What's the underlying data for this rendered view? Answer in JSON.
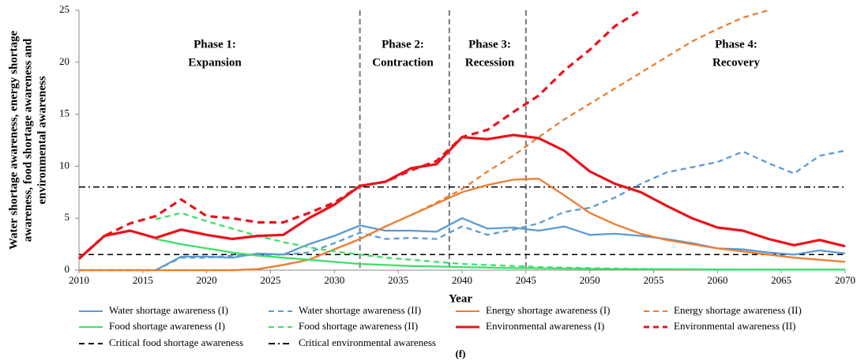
{
  "chart_data": {
    "type": "line",
    "y_label_lines": [
      "Water shortage awareness, energy shortage",
      "awareness, food shortage awareness and",
      "environmental awareness"
    ],
    "x_label": "Year",
    "caption": "(f)",
    "x": [
      2010,
      2012,
      2014,
      2016,
      2018,
      2020,
      2022,
      2024,
      2026,
      2028,
      2030,
      2032,
      2034,
      2036,
      2038,
      2040,
      2042,
      2044,
      2046,
      2048,
      2050,
      2052,
      2054,
      2056,
      2058,
      2060,
      2062,
      2064,
      2066,
      2068,
      2070
    ],
    "xlim": [
      2010,
      2070
    ],
    "xticks": [
      2010,
      2015,
      2020,
      2025,
      2030,
      2035,
      2040,
      2045,
      2050,
      2055,
      2060,
      2065,
      2070
    ],
    "ylim": [
      0,
      25
    ],
    "yticks": [
      0,
      5,
      10,
      15,
      20,
      25
    ],
    "series": [
      {
        "name": "Water shortage awareness (I)",
        "color": "#5b9bd5",
        "dash": "solid",
        "values": [
          0,
          0,
          0,
          0,
          1.3,
          1.3,
          1.2,
          1.6,
          1.5,
          2.5,
          3.3,
          4.3,
          3.8,
          3.8,
          3.7,
          5.0,
          4.0,
          4.1,
          3.8,
          4.2,
          3.4,
          3.5,
          3.3,
          3.0,
          2.6,
          2.1,
          2.0,
          1.7,
          1.5,
          1.9,
          1.6
        ]
      },
      {
        "name": "Water shortage awareness (II)",
        "color": "#5b9bd5",
        "dash": "dash",
        "values": [
          0,
          0,
          0,
          0,
          1.2,
          1.2,
          1.4,
          1.5,
          1.5,
          1.7,
          2.6,
          3.6,
          3.0,
          3.1,
          3.0,
          4.2,
          3.4,
          3.9,
          4.5,
          5.6,
          6.0,
          7.0,
          8.3,
          9.4,
          9.9,
          10.4,
          11.4,
          10.3,
          9.3,
          11.0,
          11.5
        ]
      },
      {
        "name": "Energy shortage awareness (I)",
        "color": "#ed7d31",
        "dash": "solid",
        "values": [
          0,
          0,
          0,
          0,
          0,
          0,
          0,
          0.1,
          0.5,
          1.0,
          2.0,
          3.0,
          4.2,
          5.3,
          6.4,
          7.5,
          8.2,
          8.7,
          8.8,
          7.2,
          5.5,
          4.4,
          3.5,
          2.9,
          2.5,
          2.1,
          1.8,
          1.5,
          1.2,
          1.0,
          0.8
        ]
      },
      {
        "name": "Energy shortage awareness (II)",
        "color": "#ed7d31",
        "dash": "dash",
        "values": [
          0,
          0,
          0,
          0,
          0,
          0,
          0,
          0.1,
          0.5,
          1.0,
          2.0,
          3.0,
          4.2,
          5.3,
          6.5,
          7.8,
          9.5,
          11.0,
          12.8,
          14.5,
          16.0,
          17.5,
          19.0,
          20.5,
          22.0,
          23.2,
          24.3,
          25,
          null,
          null,
          null
        ]
      },
      {
        "name": "Food shortage awareness (I)",
        "color": "#3de06a",
        "dash": "solid",
        "values": [
          null,
          null,
          null,
          3.0,
          2.5,
          2.1,
          1.7,
          1.4,
          1.2,
          1.0,
          0.8,
          0.6,
          0.5,
          0.4,
          0.35,
          0.3,
          0.25,
          0.2,
          0.18,
          0.15,
          0.13,
          0.11,
          0.1,
          0.09,
          0.08,
          0.07,
          0.06,
          0.06,
          0.05,
          0.05,
          0.05
        ]
      },
      {
        "name": "Food shortage awareness (II)",
        "color": "#3de06a",
        "dash": "dash",
        "values": [
          null,
          null,
          null,
          4.9,
          5.5,
          4.7,
          4.0,
          3.3,
          2.7,
          2.2,
          1.8,
          1.5,
          1.2,
          1.0,
          0.8,
          0.6,
          0.5,
          0.4,
          0.3,
          0.25,
          0.2,
          0.15,
          0.12,
          0.1,
          0.08,
          0.07,
          0.06,
          0.06,
          0.05,
          0.05,
          0.05
        ]
      },
      {
        "name": "Environmental awareness (I)",
        "color": "#e8141b",
        "dash": "solid",
        "values": [
          1.1,
          3.3,
          3.8,
          3.1,
          3.9,
          3.4,
          3.0,
          3.3,
          3.4,
          5.0,
          6.3,
          8.1,
          8.5,
          9.8,
          10.2,
          12.8,
          12.6,
          13.0,
          12.7,
          11.5,
          9.5,
          8.3,
          7.5,
          6.2,
          5.0,
          4.1,
          3.8,
          3.0,
          2.4,
          2.9,
          2.3
        ]
      },
      {
        "name": "Environmental awareness (II)",
        "color": "#e8141b",
        "dash": "dash",
        "values": [
          1.1,
          3.3,
          4.5,
          5.2,
          6.8,
          5.2,
          5.0,
          4.6,
          4.6,
          5.5,
          6.5,
          8.1,
          8.5,
          9.6,
          10.5,
          12.8,
          13.5,
          15.2,
          16.8,
          19.2,
          21.2,
          23.5,
          25,
          null,
          null,
          null,
          null,
          null,
          null,
          null,
          null
        ]
      }
    ],
    "reference_lines": [
      {
        "name": "Critical food shortage awareness",
        "value": 1.5,
        "color": "#000000",
        "dash": "dash"
      },
      {
        "name": "Critical environmental awareness",
        "value": 8,
        "color": "#000000",
        "dash": "dashdot"
      }
    ],
    "phase_boundaries": [
      2032,
      2039,
      2045
    ],
    "phases": [
      {
        "lines": [
          "Phase 1:",
          "Expansion"
        ]
      },
      {
        "lines": [
          "Phase 2:",
          "Contraction"
        ]
      },
      {
        "lines": [
          "Phase 3:",
          "Recession"
        ]
      },
      {
        "lines": [
          "Phase 4:",
          "Recovery"
        ]
      }
    ]
  }
}
